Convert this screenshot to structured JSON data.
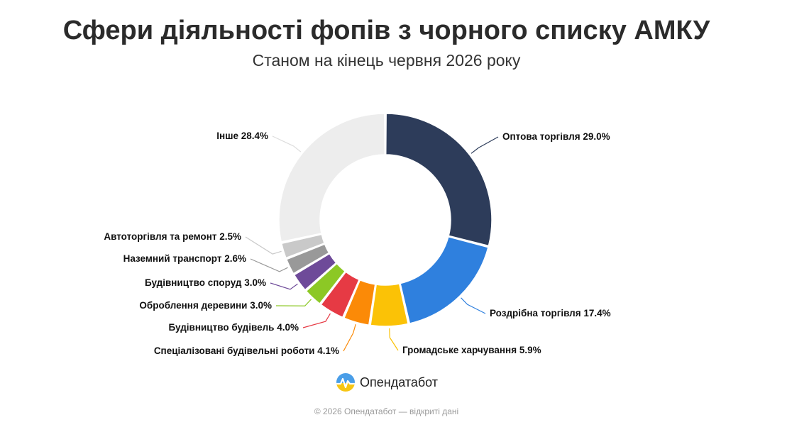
{
  "chart_data": {
    "type": "pie",
    "title": "Сфери діяльності фопів з чорного списку АМКУ",
    "subtitle": "Станом на кінець червня 2026 року",
    "slices": [
      {
        "label": "Оптова торгівля",
        "value": 29.0,
        "display": "Оптова торгівля 29.0%",
        "color": "#2d3c5a"
      },
      {
        "label": "Роздрібна торгівля",
        "value": 17.4,
        "display": "Роздрібна торгівля 17.4%",
        "color": "#2f80de"
      },
      {
        "label": "Громадське харчування",
        "value": 5.9,
        "display": "Громадське харчування 5.9%",
        "color": "#fbc206"
      },
      {
        "label": "Спеціалізовані будівельні роботи",
        "value": 4.1,
        "display": "Спеціалізовані будівельні роботи 4.1%",
        "color": "#fb8a07"
      },
      {
        "label": "Будівництво будівель",
        "value": 4.0,
        "display": "Будівництво будівель 4.0%",
        "color": "#e63a44"
      },
      {
        "label": "Оброблення деревини",
        "value": 3.0,
        "display": "Оброблення деревини 3.0%",
        "color": "#8cc825"
      },
      {
        "label": "Будівництво споруд",
        "value": 3.0,
        "display": "Будівництво споруд 3.0%",
        "color": "#6e4a99"
      },
      {
        "label": "Наземний транспорт",
        "value": 2.6,
        "display": "Наземний транспорт 2.6%",
        "color": "#999999"
      },
      {
        "label": "Автоторгівля та ремонт",
        "value": 2.5,
        "display": "Автоторгівля та ремонт 2.5%",
        "color": "#c9c9c9"
      },
      {
        "label": "Інше",
        "value": 28.4,
        "display": "Інше 28.4%",
        "color": "#ededed"
      }
    ]
  },
  "brand": {
    "name": "Опендатабот"
  },
  "footer": {
    "text": "© 2026 Опендатабот — відкриті дані"
  }
}
